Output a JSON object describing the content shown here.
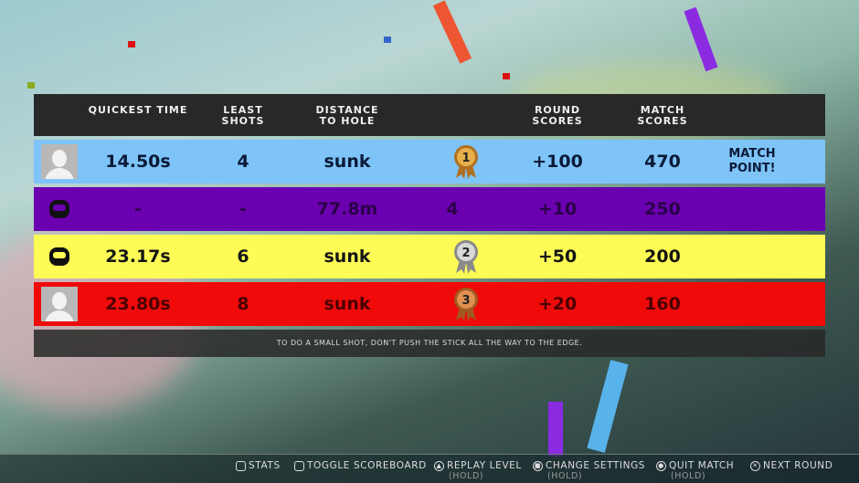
{
  "headers": {
    "quickest_time": "QUICKEST TIME",
    "least_shots": "LEAST SHOTS",
    "distance": "DISTANCE TO HOLE",
    "round_scores": "ROUND SCORES",
    "match_scores": "MATCH SCORES"
  },
  "rows": [
    {
      "avatar": "player-photo",
      "color": "#7ec4f8",
      "text_color": "#0b1a38",
      "time": "14.50s",
      "shots": "4",
      "distance": "sunk",
      "place": "1",
      "medal": "gold",
      "round": "+100",
      "match": "470",
      "note": "MATCH POINT!"
    },
    {
      "avatar": "robot",
      "color": "#6b00b0",
      "text_color": "#2a0048",
      "time": "-",
      "shots": "-",
      "distance": "77.8m",
      "place": "4",
      "medal": "",
      "round": "+10",
      "match": "250",
      "note": ""
    },
    {
      "avatar": "robot",
      "color": "#fdfb55",
      "text_color": "#151515",
      "time": "23.17s",
      "shots": "6",
      "distance": "sunk",
      "place": "2",
      "medal": "silver",
      "round": "+50",
      "match": "200",
      "note": ""
    },
    {
      "avatar": "player-photo",
      "color": "#f00a0a",
      "text_color": "#4a0000",
      "time": "23.80s",
      "shots": "8",
      "distance": "sunk",
      "place": "3",
      "medal": "bronze",
      "round": "+20",
      "match": "160",
      "note": ""
    }
  ],
  "tip": "TO DO A SMALL SHOT, DON'T PUSH THE STICK ALL THE WAY TO THE EDGE.",
  "footer": {
    "stats": "STATS",
    "toggle": "TOGGLE SCOREBOARD",
    "replay": "REPLAY LEVEL",
    "replay_hold": "(HOLD)",
    "settings": "CHANGE SETTINGS",
    "settings_hold": "(HOLD)",
    "quit": "QUIT MATCH",
    "quit_hold": "(HOLD)",
    "next": "NEXT ROUND"
  }
}
